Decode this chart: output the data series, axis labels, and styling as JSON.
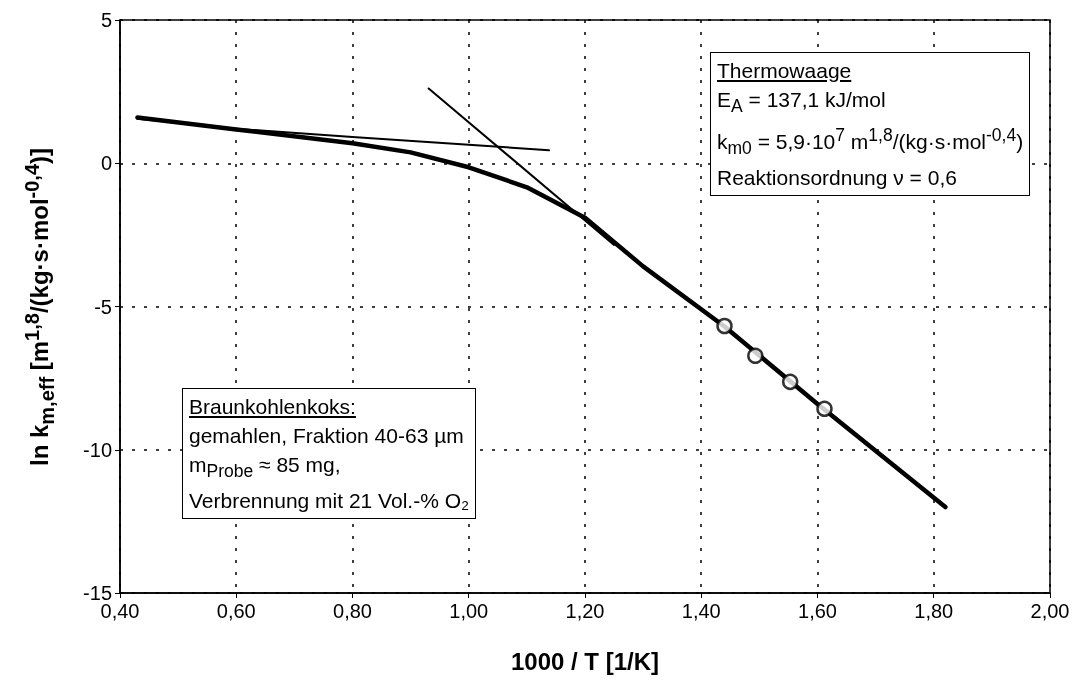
{
  "chart_data": {
    "type": "line",
    "xlabel": "1000 / T [1/K]",
    "ylabel": "ln k$_{m,eff}$  [m$^{1,8}$/(kg·s·mol$^{-0,4}$)]",
    "xlim": [
      0.4,
      2.0
    ],
    "xticks": [
      {
        "value": 0.4,
        "label": "0,40"
      },
      {
        "value": 0.6,
        "label": "0,60"
      },
      {
        "value": 0.8,
        "label": "0,80"
      },
      {
        "value": 1.0,
        "label": "1,00"
      },
      {
        "value": 1.2,
        "label": "1,20"
      },
      {
        "value": 1.4,
        "label": "1,40"
      },
      {
        "value": 1.6,
        "label": "1,60"
      },
      {
        "value": 1.8,
        "label": "1,80"
      },
      {
        "value": 2.0,
        "label": "2,00"
      }
    ],
    "ylim": [
      -15,
      5
    ],
    "yticks": [
      -15,
      -10,
      -5,
      0,
      5
    ],
    "grid": true,
    "series": [
      {
        "color": "#000000",
        "marker": "none",
        "x": [
          0.43,
          0.6,
          0.8,
          0.9,
          1.0,
          1.1,
          1.2,
          1.3,
          1.44,
          1.6,
          1.82
        ],
        "values": [
          1.6,
          1.18,
          0.7,
          0.38,
          -0.14,
          -0.84,
          -1.9,
          -3.6,
          -5.7,
          -8.4,
          -12.0
        ]
      },
      {
        "color": "#000000",
        "marker": "none",
        "x": [
          0.43,
          0.6,
          0.8,
          1.0,
          1.138
        ],
        "values": [
          1.55,
          1.2,
          0.92,
          0.65,
          0.45
        ]
      },
      {
        "color": "#000000",
        "marker": "none",
        "x": [
          0.931,
          1.25
        ],
        "values": [
          2.61,
          -2.85
        ]
      },
      {
        "type": "scatter",
        "color": "#000000",
        "marker": "circle",
        "x": [
          1.44,
          1.493,
          1.553,
          1.612
        ],
        "values": [
          -5.68,
          -6.72,
          -7.63,
          -8.57
        ]
      }
    ],
    "annotations": [
      "Thermowaage\nE$_{A}$ = 137,1 kJ/mol\nk$_{m0}$ = 5,9·10$^{7}$ m$^{1,8}$/(kg·s·mol$^{-0,4}$)\nReaktionsordnung ν = 0,6",
      "Braunkohlenkoks:\ngemahlen, Fraktion 40-63 µm\nm$_{Probe}$ ≈ 85 mg,\nVerbrennung mit 21 Vol.-% O₂"
    ]
  }
}
